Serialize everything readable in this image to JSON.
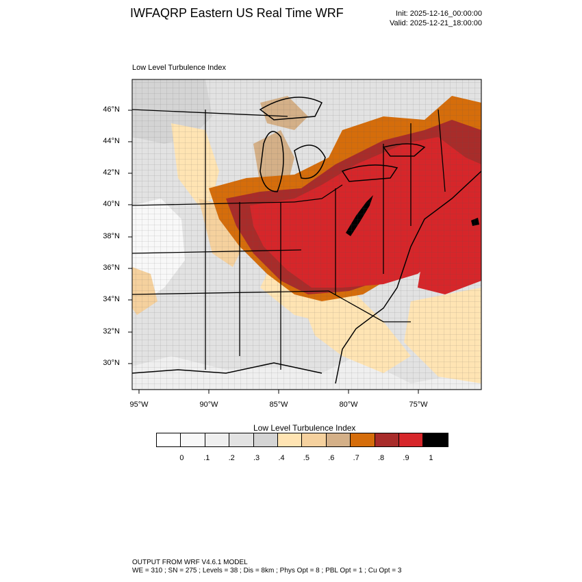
{
  "header": {
    "title": "IWFAQRP Eastern US Real Time WRF",
    "init": "Init: 2025-12-16_00:00:00",
    "valid": "Valid: 2025-12-21_18:00:00"
  },
  "map": {
    "panel_label": "Low Level Turbulence Index",
    "lat_labels": [
      "46°N",
      "44°N",
      "42°N",
      "40°N",
      "38°N",
      "36°N",
      "34°N",
      "32°N",
      "30°N"
    ],
    "lon_labels": [
      "95°W",
      "90°W",
      "85°W",
      "80°W",
      "75°W"
    ]
  },
  "colorbar": {
    "title": "Low Level Turbulence Index",
    "colors": [
      "#ffffff",
      "#f8f8f8",
      "#efefef",
      "#e2e2e2",
      "#d4d4d4",
      "#ffe4b3",
      "#f5d19e",
      "#d4b088",
      "#d56d0b",
      "#a82c2a",
      "#d6262a",
      "#000000"
    ],
    "ticks": [
      "0",
      ".1",
      ".2",
      ".3",
      ".4",
      ".5",
      ".6",
      ".7",
      ".8",
      ".9",
      "1"
    ]
  },
  "footer": {
    "line1": "OUTPUT FROM WRF V4.6.1 MODEL",
    "line2": "WE = 310 ; SN = 275 ; Levels = 38 ; Dis = 8km ; Phys Opt = 8 ; PBL Opt = 1 ; Cu Opt = 3"
  }
}
